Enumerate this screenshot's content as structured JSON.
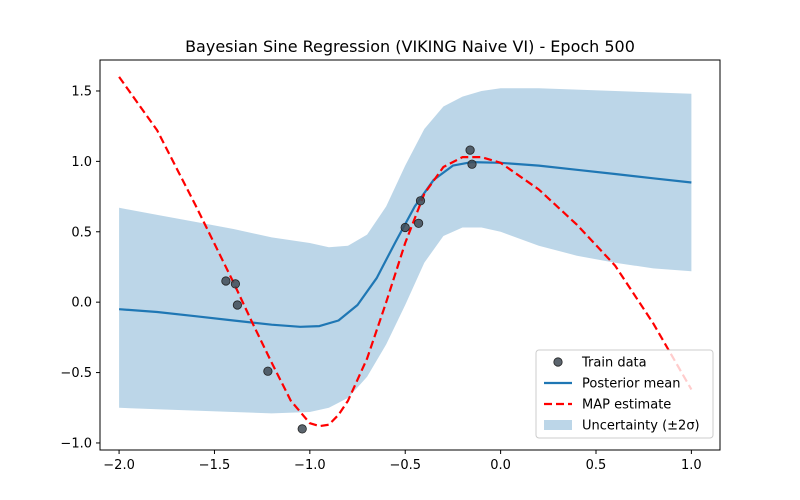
{
  "chart_data": {
    "type": "line",
    "title": "Bayesian Sine Regression (VIKING Naive VI) - Epoch 500",
    "xlabel": "",
    "ylabel": "",
    "xlim": [
      -2.1,
      1.15
    ],
    "ylim": [
      -1.05,
      1.72
    ],
    "xticks": [
      -2.0,
      -1.5,
      -1.0,
      -0.5,
      0.0,
      0.5,
      1.0
    ],
    "xtick_labels": [
      "−2.0",
      "−1.5",
      "−1.0",
      "−0.5",
      "0.0",
      "0.5",
      "1.0"
    ],
    "yticks": [
      -1.0,
      -0.5,
      0.0,
      0.5,
      1.0,
      1.5
    ],
    "ytick_labels": [
      "−1.0",
      "−0.5",
      "0.0",
      "0.5",
      "1.0",
      "1.5"
    ],
    "grid": false,
    "legend_position": "lower-right",
    "series": [
      {
        "name": "Train data",
        "kind": "scatter",
        "color": "#404a55",
        "points": [
          {
            "x": -1.44,
            "y": 0.15
          },
          {
            "x": -1.39,
            "y": 0.13
          },
          {
            "x": -1.38,
            "y": -0.02
          },
          {
            "x": -1.22,
            "y": -0.49
          },
          {
            "x": -1.04,
            "y": -0.9
          },
          {
            "x": -0.5,
            "y": 0.53
          },
          {
            "x": -0.43,
            "y": 0.56
          },
          {
            "x": -0.42,
            "y": 0.72
          },
          {
            "x": -0.16,
            "y": 1.08
          },
          {
            "x": -0.15,
            "y": 0.98
          }
        ]
      },
      {
        "name": "Posterior mean",
        "kind": "line",
        "color": "#1f77b4",
        "x": [
          -2.0,
          -1.8,
          -1.6,
          -1.4,
          -1.2,
          -1.05,
          -0.95,
          -0.85,
          -0.75,
          -0.65,
          -0.55,
          -0.45,
          -0.35,
          -0.25,
          -0.15,
          0.0,
          0.2,
          0.4,
          0.6,
          0.8,
          1.0
        ],
        "y": [
          -0.05,
          -0.07,
          -0.1,
          -0.13,
          -0.16,
          -0.175,
          -0.17,
          -0.13,
          -0.02,
          0.17,
          0.43,
          0.68,
          0.87,
          0.97,
          0.995,
          0.99,
          0.97,
          0.94,
          0.91,
          0.88,
          0.85
        ]
      },
      {
        "name": "MAP estimate",
        "kind": "line",
        "dashed": true,
        "color": "#ff0000",
        "x": [
          -2.0,
          -1.8,
          -1.6,
          -1.4,
          -1.3,
          -1.2,
          -1.1,
          -1.0,
          -0.95,
          -0.9,
          -0.85,
          -0.8,
          -0.7,
          -0.6,
          -0.5,
          -0.4,
          -0.3,
          -0.2,
          -0.1,
          0.0,
          0.2,
          0.4,
          0.6,
          0.8,
          1.0
        ],
        "y": [
          1.6,
          1.22,
          0.69,
          0.14,
          -0.15,
          -0.43,
          -0.7,
          -0.86,
          -0.88,
          -0.87,
          -0.8,
          -0.7,
          -0.4,
          0.0,
          0.42,
          0.77,
          0.96,
          1.03,
          1.03,
          0.99,
          0.8,
          0.55,
          0.26,
          -0.15,
          -0.62
        ]
      },
      {
        "name": "Uncertainty (±2σ)",
        "kind": "band",
        "color": "#a6c8e0",
        "opacity": 0.75,
        "x": [
          -2.0,
          -1.8,
          -1.6,
          -1.4,
          -1.2,
          -1.0,
          -0.9,
          -0.8,
          -0.7,
          -0.6,
          -0.5,
          -0.4,
          -0.3,
          -0.2,
          -0.1,
          0.0,
          0.2,
          0.4,
          0.6,
          0.8,
          1.0
        ],
        "lower": [
          -0.75,
          -0.76,
          -0.77,
          -0.78,
          -0.79,
          -0.78,
          -0.75,
          -0.68,
          -0.53,
          -0.3,
          -0.02,
          0.28,
          0.47,
          0.53,
          0.53,
          0.5,
          0.4,
          0.33,
          0.28,
          0.24,
          0.22
        ],
        "upper": [
          0.67,
          0.62,
          0.57,
          0.52,
          0.46,
          0.42,
          0.39,
          0.4,
          0.48,
          0.68,
          0.97,
          1.23,
          1.39,
          1.46,
          1.5,
          1.52,
          1.52,
          1.51,
          1.5,
          1.49,
          1.48
        ]
      }
    ]
  }
}
